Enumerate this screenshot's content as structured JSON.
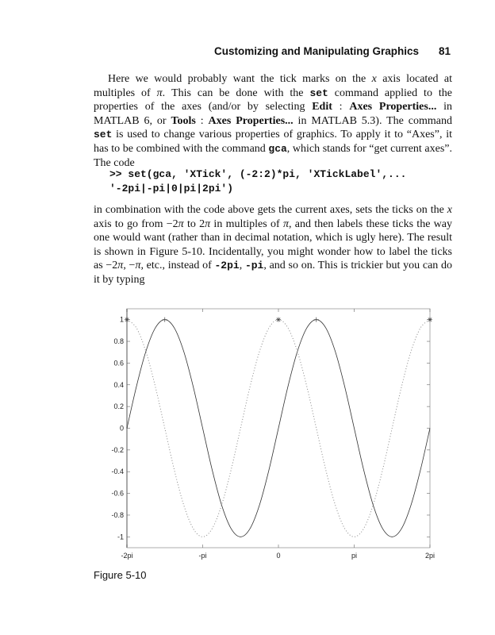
{
  "header": {
    "title": "Customizing and Manipulating Graphics",
    "page_number": "81"
  },
  "paragraph1": [
    "Here we would probably want the tick marks on the ",
    "x",
    " axis located at multiples of ",
    "π",
    ". This can be done with the ",
    "set",
    " command applied to the properties of the axes (and/or by selecting ",
    "Edit",
    " : ",
    "Axes Properties...",
    " in MATLAB 6, or ",
    "Tools",
    " : ",
    "Axes Properties...",
    " in MATLAB 5.3). The command ",
    "set",
    " is used to change various properties of graphics. To apply it to “Axes”, it has to be combined with the command ",
    "gca",
    ", which stands for “get current axes”. The code"
  ],
  "code": [
    ">> set(gca, 'XTick', (-2:2)*pi, 'XTickLabel',...",
    "'-2pi|-pi|0|pi|2pi')"
  ],
  "paragraph2": [
    "in combination with the code above gets the current axes, sets the ticks on the ",
    "x",
    " axis to go from −2",
    "π",
    " to 2",
    "π",
    " in multiples of ",
    "π",
    ", and then labels these ticks the way one would want (rather than in decimal notation, which is ugly here). The result is shown in Figure 5-10. Incidentally, you might wonder how to label the ticks as −2",
    "π",
    ", −",
    "π",
    ", etc., instead of ",
    "-2pi",
    ", ",
    "-pi",
    ", and so on. This is trickier but you can do it by typing"
  ],
  "figure_caption": "Figure 5-10",
  "chart_data": {
    "type": "line",
    "title": "",
    "xlabel": "",
    "ylabel": "",
    "x_unit": "pi",
    "xlim": [
      -2,
      2
    ],
    "ylim": [
      -1.1,
      1.1
    ],
    "xticks": [
      -2,
      -1,
      0,
      1,
      2
    ],
    "xtick_labels": [
      "-2pi",
      "-pi",
      "0",
      "pi",
      "2pi"
    ],
    "yticks": [
      1,
      0.8,
      0.6,
      0.4,
      0.2,
      0,
      -0.2,
      -0.4,
      -0.6,
      -0.8,
      -1
    ],
    "ytick_labels": [
      "1",
      "0.8",
      "0.6",
      "0.4",
      "0.2",
      "0",
      "-0.2",
      "-0.4",
      "-0.6",
      "-0.8",
      "-1"
    ],
    "grid": false,
    "x": [
      -2,
      -1.875,
      -1.75,
      -1.625,
      -1.5,
      -1.375,
      -1.25,
      -1.125,
      -1,
      -0.875,
      -0.75,
      -0.625,
      -0.5,
      -0.375,
      -0.25,
      -0.125,
      0,
      0.125,
      0.25,
      0.375,
      0.5,
      0.625,
      0.75,
      0.875,
      1,
      1.125,
      1.25,
      1.375,
      1.5,
      1.625,
      1.75,
      1.875,
      2
    ],
    "series": [
      {
        "style": "solid",
        "color": "#333333",
        "values": [
          0,
          0.383,
          0.707,
          0.924,
          1,
          0.924,
          0.707,
          0.383,
          0,
          -0.383,
          -0.707,
          -0.924,
          -1,
          -0.924,
          -0.707,
          -0.383,
          0,
          0.383,
          0.707,
          0.924,
          1,
          0.924,
          0.707,
          0.383,
          0,
          -0.383,
          -0.707,
          -0.924,
          -1,
          -0.924,
          -0.707,
          -0.383,
          0
        ],
        "markers": [
          {
            "x": -1.5,
            "y": 1
          },
          {
            "x": 0.5,
            "y": 1
          }
        ]
      },
      {
        "style": "dotted",
        "color": "#888888",
        "values": [
          1,
          0.924,
          0.707,
          0.383,
          0,
          -0.383,
          -0.707,
          -0.924,
          -1,
          -0.924,
          -0.707,
          -0.383,
          0,
          0.383,
          0.707,
          0.924,
          1,
          0.924,
          0.707,
          0.383,
          0,
          -0.383,
          -0.707,
          -0.924,
          -1,
          -0.924,
          -0.707,
          -0.383,
          0,
          0.383,
          0.707,
          0.924,
          1
        ],
        "markers": [
          {
            "x": -2,
            "y": 1
          },
          {
            "x": 0,
            "y": 1
          },
          {
            "x": 2,
            "y": 1
          }
        ]
      }
    ]
  }
}
